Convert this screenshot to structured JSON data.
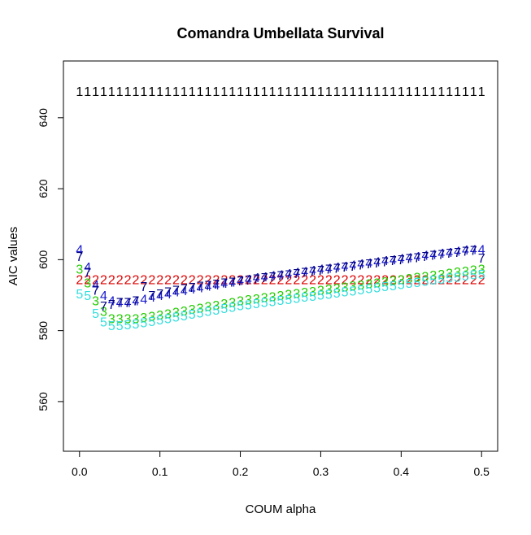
{
  "chart_data": {
    "type": "scatter",
    "title": "Comandra Umbellata Survival",
    "xlabel": "COUM alpha",
    "ylabel": "AIC values",
    "xlim": [
      -0.02,
      0.52
    ],
    "ylim": [
      546,
      656
    ],
    "x_ticks": [
      0.0,
      0.1,
      0.2,
      0.3,
      0.4,
      0.5
    ],
    "x_tick_labels": [
      "0.0",
      "0.1",
      "0.2",
      "0.3",
      "0.4",
      "0.5"
    ],
    "y_ticks": [
      560,
      580,
      600,
      620,
      640
    ],
    "y_tick_labels": [
      "560",
      "580",
      "600",
      "620",
      "640"
    ],
    "grid": false,
    "legend": "none",
    "marker": "series-number",
    "x": [
      0,
      0.01,
      0.02,
      0.03,
      0.04,
      0.05,
      0.06,
      0.07,
      0.08,
      0.09,
      0.1,
      0.11,
      0.12,
      0.13,
      0.14,
      0.15,
      0.16,
      0.17,
      0.18,
      0.19,
      0.2,
      0.21,
      0.22,
      0.23,
      0.24,
      0.25,
      0.26,
      0.27,
      0.28,
      0.29,
      0.3,
      0.31,
      0.32,
      0.33,
      0.34,
      0.35,
      0.36,
      0.37,
      0.38,
      0.39,
      0.4,
      0.41,
      0.42,
      0.43,
      0.44,
      0.45,
      0.46,
      0.47,
      0.48,
      0.49,
      0.5
    ],
    "series": [
      {
        "symbol": "1",
        "color": "#000000",
        "values": [
          647.5,
          647.5,
          647.5,
          647.5,
          647.5,
          647.5,
          647.5,
          647.5,
          647.5,
          647.5,
          647.5,
          647.5,
          647.5,
          647.5,
          647.5,
          647.5,
          647.5,
          647.5,
          647.5,
          647.5,
          647.5,
          647.5,
          647.5,
          647.5,
          647.5,
          647.5,
          647.5,
          647.5,
          647.5,
          647.5,
          647.5,
          647.5,
          647.5,
          647.5,
          647.5,
          647.5,
          647.5,
          647.5,
          647.5,
          647.5,
          647.5,
          647.5,
          647.5,
          647.5,
          647.5,
          647.5,
          647.5,
          647.5,
          647.5,
          647.5,
          647.5
        ]
      },
      {
        "symbol": "2",
        "color": "#df0000",
        "values": [
          594.5,
          594.5,
          594.5,
          594.5,
          594.5,
          594.5,
          594.5,
          594.5,
          594.5,
          594.5,
          594.5,
          594.5,
          594.5,
          594.5,
          594.5,
          594.5,
          594.5,
          594.5,
          594.5,
          594.5,
          594.5,
          594.5,
          594.5,
          594.5,
          594.5,
          594.5,
          594.5,
          594.5,
          594.5,
          594.5,
          594.5,
          594.5,
          594.5,
          594.5,
          594.5,
          594.5,
          594.5,
          594.5,
          594.5,
          594.5,
          594.5,
          594.5,
          594.5,
          594.5,
          594.5,
          594.5,
          594.5,
          594.5,
          594.5,
          594.5,
          594.5
        ]
      },
      {
        "symbol": "3",
        "color": "#22cc00",
        "values": [
          597.5,
          593.5,
          588.5,
          585.5,
          583.5,
          583.5,
          583.5,
          583.5,
          583.8,
          584.1,
          584.5,
          584.9,
          585.3,
          585.7,
          586.1,
          586.5,
          586.9,
          587.3,
          587.7,
          588.1,
          588.5,
          588.8,
          589.1,
          589.4,
          589.7,
          590.0,
          590.3,
          590.6,
          590.9,
          591.2,
          591.5,
          591.8,
          592.1,
          592.4,
          592.7,
          593.0,
          593.3,
          593.6,
          593.9,
          594.2,
          594.5,
          594.8,
          595.1,
          595.4,
          595.7,
          596.0,
          596.3,
          596.6,
          596.9,
          597.2,
          597.5
        ]
      },
      {
        "symbol": "4",
        "color": "#1a1acc",
        "values": [
          603.0,
          598.0,
          593.0,
          590.0,
          588.5,
          588.0,
          588.0,
          588.5,
          589.0,
          589.5,
          590.0,
          590.5,
          591.0,
          591.4,
          591.8,
          592.2,
          592.6,
          593.0,
          593.4,
          593.8,
          594.2,
          594.6,
          595.0,
          595.3,
          595.6,
          595.9,
          596.2,
          596.5,
          596.8,
          597.1,
          597.4,
          597.7,
          598.0,
          598.3,
          598.6,
          598.9,
          599.2,
          599.5,
          599.8,
          600.1,
          600.4,
          600.7,
          601.0,
          601.3,
          601.6,
          601.9,
          602.2,
          602.5,
          602.8,
          602.9,
          603.0
        ]
      },
      {
        "symbol": "5",
        "color": "#33dddd",
        "values": [
          590.5,
          590.0,
          585.0,
          582.5,
          581.5,
          581.5,
          581.8,
          582.0,
          582.3,
          582.7,
          583.1,
          583.5,
          583.9,
          584.3,
          584.7,
          585.1,
          585.5,
          585.9,
          586.3,
          586.7,
          587.1,
          587.4,
          587.7,
          588.0,
          588.3,
          588.6,
          588.9,
          589.2,
          589.5,
          589.8,
          590.1,
          590.4,
          590.7,
          591.0,
          591.3,
          591.6,
          591.9,
          592.2,
          592.5,
          592.8,
          593.1,
          593.4,
          593.7,
          594.0,
          594.3,
          594.6,
          594.9,
          595.2,
          595.5,
          595.8,
          596.0
        ]
      },
      {
        "symbol": "7",
        "color": "#000080",
        "values": [
          601.0,
          596.5,
          591.5,
          587.0,
          587.5,
          588.0,
          588.0,
          588.5,
          592.5,
          590.0,
          590.5,
          591.0,
          591.5,
          592.0,
          592.3,
          592.6,
          592.9,
          593.2,
          593.5,
          593.8,
          594.1,
          594.4,
          594.7,
          595.0,
          595.3,
          595.6,
          595.9,
          596.2,
          596.5,
          596.8,
          597.1,
          597.4,
          597.7,
          598.0,
          598.3,
          598.6,
          598.9,
          599.2,
          599.5,
          599.8,
          600.1,
          600.4,
          600.7,
          601.0,
          601.3,
          601.6,
          601.9,
          602.2,
          602.5,
          602.7,
          600.5
        ]
      }
    ]
  }
}
